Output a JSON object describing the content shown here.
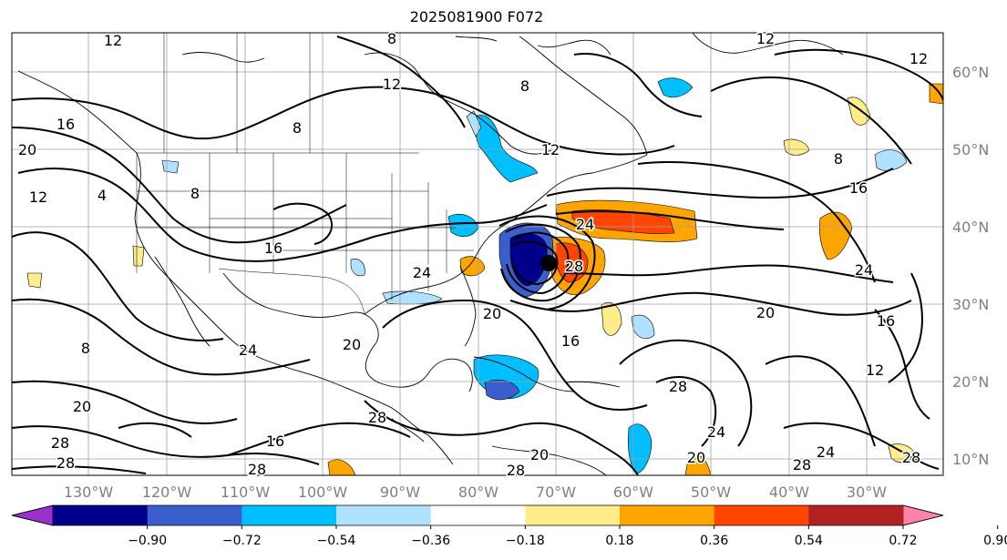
{
  "title": "2025081900 F072",
  "lon_labels": [
    "130°W",
    "120°W",
    "110°W",
    "100°W",
    "90°W",
    "80°W",
    "70°W",
    "60°W",
    "50°W",
    "40°W",
    "30°W"
  ],
  "lat_labels": [
    "60°N",
    "50°N",
    "40°N",
    "30°N",
    "20°N",
    "10°N"
  ],
  "contour_labels": [
    "12",
    "8",
    "12",
    "16",
    "12",
    "4",
    "8",
    "16",
    "24",
    "28",
    "20",
    "24",
    "20",
    "20",
    "16",
    "12",
    "28",
    "8",
    "24",
    "20",
    "8",
    "12",
    "16",
    "20",
    "24",
    "28",
    "28",
    "8",
    "12",
    "16",
    "24",
    "28",
    "20",
    "28",
    "28",
    "28",
    "20",
    "24",
    "28",
    "16",
    "8",
    "12"
  ],
  "colorbar": {
    "ticks": [
      "−0.90",
      "−0.72",
      "−0.54",
      "−0.36",
      "−0.18",
      "0.18",
      "0.36",
      "0.54",
      "0.72",
      "0.90"
    ],
    "colors": [
      "#9a31cd",
      "#00008b",
      "#3a5fcd",
      "#00bfff",
      "#b0e2ff",
      "#ffffff",
      "#ffec8b",
      "#ffa500",
      "#ff4500",
      "#b22222",
      "#ff82ab"
    ]
  },
  "icons": [
    "low-pressure-center-icon"
  ]
}
